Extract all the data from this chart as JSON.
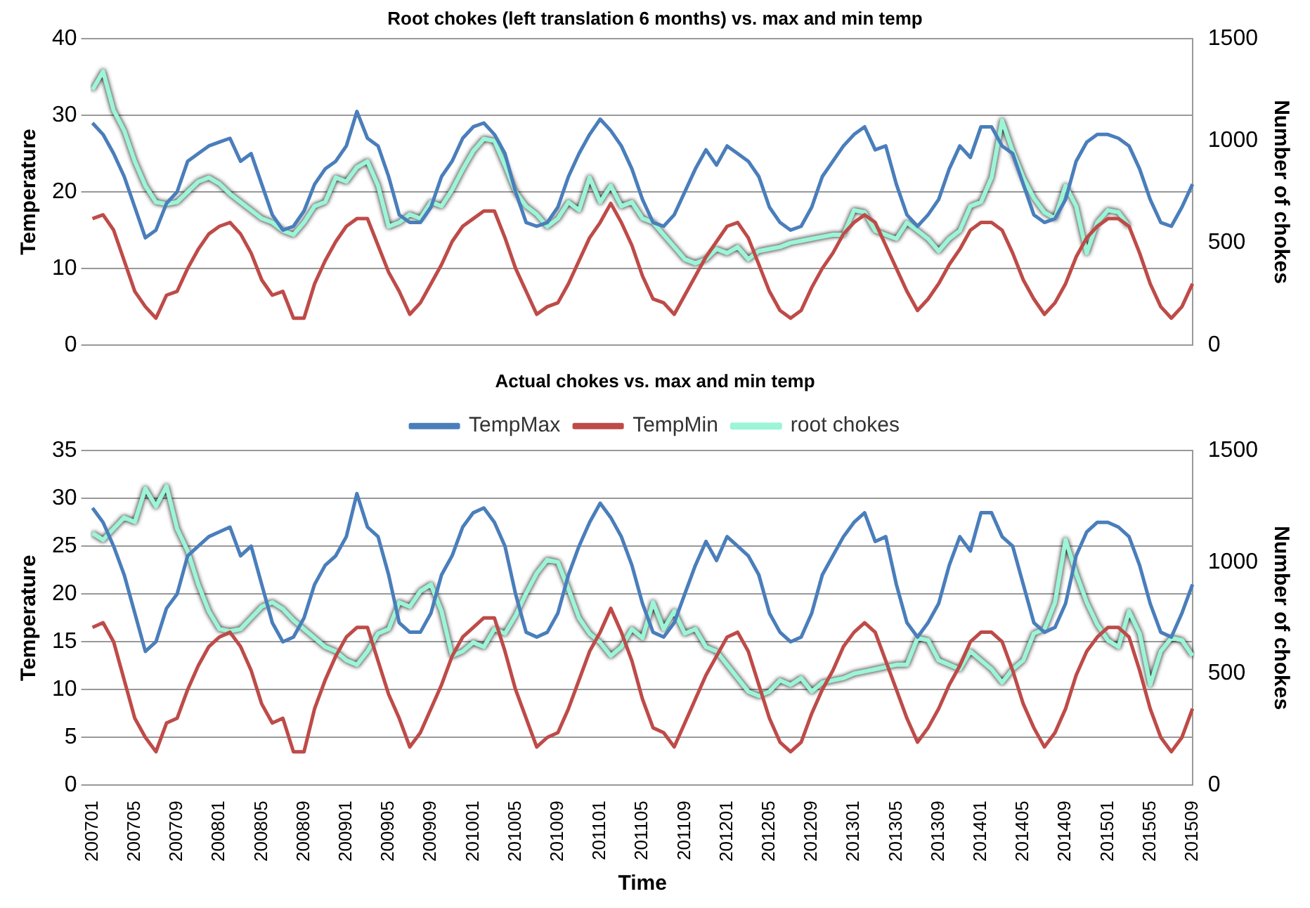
{
  "chart_data": [
    {
      "type": "line",
      "title": "Root chokes (left translation 6 months) vs. max and min temp",
      "ylabel": "Temperature",
      "y2label": "Number of chokes",
      "categories": [
        "200701",
        null,
        null,
        null,
        "200705",
        null,
        null,
        null,
        "200709",
        null,
        null,
        null,
        "200801",
        null,
        null,
        null,
        "200805",
        null,
        null,
        null,
        "200809",
        null,
        null,
        null,
        "200901",
        null,
        null,
        null,
        "200905",
        null,
        null,
        null,
        "200909",
        null,
        null,
        null,
        "201001",
        null,
        null,
        null,
        "201005",
        null,
        null,
        null,
        "201009",
        null,
        null,
        null,
        "201101",
        null,
        null,
        null,
        "201105",
        null,
        null,
        null,
        "201109",
        null,
        null,
        null,
        "201201",
        null,
        null,
        null,
        "201205",
        null,
        null,
        null,
        "201209",
        null,
        null,
        null,
        "201301",
        null,
        null,
        null,
        "201305",
        null,
        null,
        null,
        "201309",
        null,
        null,
        null,
        "201401",
        null,
        null,
        null,
        "201405",
        null,
        null,
        null,
        "201409",
        null,
        null,
        null,
        "201501",
        null,
        null,
        null,
        "201505",
        null,
        null,
        null,
        "201509"
      ],
      "tick_labels": "y",
      "grid": "y",
      "legend": false,
      "marker": "none",
      "line_style": "solid",
      "ylim": [
        0,
        40
      ],
      "yticks": [
        0,
        10,
        20,
        30,
        40
      ],
      "y2lim": [
        0,
        1500
      ],
      "y2ticks": [
        0,
        500,
        1000,
        1500
      ],
      "series": [
        {
          "color": "#4a7ebb",
          "values": [
            29,
            27.5,
            25,
            22,
            18,
            14,
            15,
            18.5,
            20,
            24,
            25,
            26,
            26.5,
            27,
            24,
            25,
            21,
            17,
            15,
            15.5,
            17.5,
            21,
            23,
            24,
            26,
            30.5,
            27,
            26,
            22,
            17,
            16,
            16,
            18,
            22,
            24,
            27,
            28.5,
            29,
            27.5,
            25,
            20,
            16,
            15.5,
            16,
            18,
            22,
            25,
            27.5,
            29.5,
            28,
            26,
            23,
            19,
            16,
            15.5,
            17,
            20,
            23,
            25.5,
            23.5,
            26,
            25,
            24,
            22,
            18,
            16,
            15,
            15.5,
            18,
            22,
            24,
            26,
            27.5,
            28.5,
            25.5,
            26,
            21,
            17,
            15.5,
            17,
            19,
            23,
            26,
            24.5,
            28.5,
            28.5,
            26,
            25,
            21,
            17,
            16,
            16.5,
            19,
            24,
            26.5,
            27.5,
            27.5,
            27,
            26,
            23,
            19,
            16,
            15.5,
            18,
            21
          ]
        },
        {
          "color": "#be4b48",
          "values": [
            16.5,
            17,
            15,
            11,
            7,
            5,
            3.5,
            6.5,
            7,
            10,
            12.5,
            14.5,
            15.5,
            16,
            14.5,
            12,
            8.5,
            6.5,
            7,
            3.5,
            3.5,
            8,
            11,
            13.5,
            15.5,
            16.5,
            16.5,
            13,
            9.5,
            7,
            4,
            5.5,
            8,
            10.5,
            13.5,
            15.5,
            16.5,
            17.5,
            17.5,
            14,
            10,
            7,
            4,
            5,
            5.5,
            8,
            11,
            14,
            16,
            18.5,
            16,
            13,
            9,
            6,
            5.5,
            4,
            6.5,
            9,
            11.5,
            13.5,
            15.5,
            16,
            14,
            10.5,
            7,
            4.5,
            3.5,
            4.5,
            7.5,
            10,
            12,
            14.5,
            16,
            17,
            16,
            13,
            10,
            7,
            4.5,
            6,
            8,
            10.5,
            12.5,
            15,
            16,
            16,
            15,
            12,
            8.5,
            6,
            4,
            5.5,
            8,
            11.5,
            14,
            15.5,
            16.5,
            16.5,
            15.5,
            12,
            8,
            5,
            3.5,
            5,
            8
          ]
        },
        {
          "color": "#9cf5d6",
          "axis": "y2",
          "values": [
            1250,
            1340,
            1150,
            1050,
            900,
            780,
            700,
            690,
            700,
            750,
            800,
            820,
            790,
            740,
            700,
            660,
            620,
            600,
            560,
            540,
            600,
            680,
            700,
            820,
            800,
            870,
            900,
            780,
            580,
            600,
            640,
            620,
            700,
            680,
            760,
            860,
            950,
            1010,
            1000,
            880,
            750,
            680,
            640,
            580,
            620,
            700,
            660,
            820,
            700,
            780,
            680,
            700,
            620,
            600,
            540,
            480,
            420,
            400,
            420,
            470,
            450,
            480,
            420,
            460,
            470,
            480,
            500,
            510,
            520,
            530,
            540,
            540,
            660,
            650,
            560,
            540,
            520,
            600,
            560,
            520,
            460,
            520,
            560,
            680,
            700,
            820,
            1100,
            950,
            820,
            720,
            650,
            620,
            780,
            680,
            450,
            600,
            660,
            650,
            580,
            null,
            null,
            null,
            null,
            null,
            null
          ]
        }
      ]
    },
    {
      "type": "line",
      "title": "Actual chokes vs. max and min temp",
      "xlabel": "Time",
      "ylabel": "Temperature",
      "y2label": "Number of chokes",
      "categories": [
        "200701",
        null,
        null,
        null,
        "200705",
        null,
        null,
        null,
        "200709",
        null,
        null,
        null,
        "200801",
        null,
        null,
        null,
        "200805",
        null,
        null,
        null,
        "200809",
        null,
        null,
        null,
        "200901",
        null,
        null,
        null,
        "200905",
        null,
        null,
        null,
        "200909",
        null,
        null,
        null,
        "201001",
        null,
        null,
        null,
        "201005",
        null,
        null,
        null,
        "201009",
        null,
        null,
        null,
        "201101",
        null,
        null,
        null,
        "201105",
        null,
        null,
        null,
        "201109",
        null,
        null,
        null,
        "201201",
        null,
        null,
        null,
        "201205",
        null,
        null,
        null,
        "201209",
        null,
        null,
        null,
        "201301",
        null,
        null,
        null,
        "201305",
        null,
        null,
        null,
        "201309",
        null,
        null,
        null,
        "201401",
        null,
        null,
        null,
        "201405",
        null,
        null,
        null,
        "201409",
        null,
        null,
        null,
        "201501",
        null,
        null,
        null,
        "201505",
        null,
        null,
        null,
        "201509"
      ],
      "grid": "y",
      "legend": "top",
      "marker": "none",
      "line_style": "solid",
      "ylim": [
        0,
        35
      ],
      "yticks": [
        0,
        5,
        10,
        15,
        20,
        25,
        30,
        35
      ],
      "y2lim": [
        0,
        1500
      ],
      "y2ticks": [
        0,
        500,
        1000,
        1500
      ],
      "series": [
        {
          "name": "TempMax",
          "color": "#4a7ebb",
          "values": [
            29,
            27.5,
            25,
            22,
            18,
            14,
            15,
            18.5,
            20,
            24,
            25,
            26,
            26.5,
            27,
            24,
            25,
            21,
            17,
            15,
            15.5,
            17.5,
            21,
            23,
            24,
            26,
            30.5,
            27,
            26,
            22,
            17,
            16,
            16,
            18,
            22,
            24,
            27,
            28.5,
            29,
            27.5,
            25,
            20,
            16,
            15.5,
            16,
            18,
            22,
            25,
            27.5,
            29.5,
            28,
            26,
            23,
            19,
            16,
            15.5,
            17,
            20,
            23,
            25.5,
            23.5,
            26,
            25,
            24,
            22,
            18,
            16,
            15,
            15.5,
            18,
            22,
            24,
            26,
            27.5,
            28.5,
            25.5,
            26,
            21,
            17,
            15.5,
            17,
            19,
            23,
            26,
            24.5,
            28.5,
            28.5,
            26,
            25,
            21,
            17,
            16,
            16.5,
            19,
            24,
            26.5,
            27.5,
            27.5,
            27,
            26,
            23,
            19,
            16,
            15.5,
            18,
            21
          ]
        },
        {
          "name": "TempMin",
          "color": "#be4b48",
          "values": [
            16.5,
            17,
            15,
            11,
            7,
            5,
            3.5,
            6.5,
            7,
            10,
            12.5,
            14.5,
            15.5,
            16,
            14.5,
            12,
            8.5,
            6.5,
            7,
            3.5,
            3.5,
            8,
            11,
            13.5,
            15.5,
            16.5,
            16.5,
            13,
            9.5,
            7,
            4,
            5.5,
            8,
            10.5,
            13.5,
            15.5,
            16.5,
            17.5,
            17.5,
            14,
            10,
            7,
            4,
            5,
            5.5,
            8,
            11,
            14,
            16,
            18.5,
            16,
            13,
            9,
            6,
            5.5,
            4,
            6.5,
            9,
            11.5,
            13.5,
            15.5,
            16,
            14,
            10.5,
            7,
            4.5,
            3.5,
            4.5,
            7.5,
            10,
            12,
            14.5,
            16,
            17,
            16,
            13,
            10,
            7,
            4.5,
            6,
            8,
            10.5,
            12.5,
            15,
            16,
            16,
            15,
            12,
            8.5,
            6,
            4,
            5.5,
            8,
            11.5,
            14,
            15.5,
            16.5,
            16.5,
            15.5,
            12,
            8,
            5,
            3.5,
            5,
            8
          ]
        },
        {
          "name": "root chokes",
          "color": "#9cf5d6",
          "axis": "y2",
          "values": [
            1130,
            1100,
            1150,
            1200,
            1180,
            1330,
            1250,
            1340,
            1150,
            1050,
            900,
            780,
            700,
            690,
            700,
            750,
            800,
            820,
            790,
            740,
            700,
            660,
            620,
            600,
            560,
            540,
            600,
            680,
            700,
            820,
            800,
            870,
            900,
            780,
            580,
            600,
            640,
            620,
            700,
            680,
            760,
            860,
            950,
            1010,
            1000,
            880,
            750,
            680,
            640,
            580,
            620,
            700,
            660,
            820,
            700,
            780,
            680,
            700,
            620,
            600,
            540,
            480,
            420,
            400,
            420,
            470,
            450,
            480,
            420,
            460,
            470,
            480,
            500,
            510,
            520,
            530,
            540,
            540,
            660,
            650,
            560,
            540,
            520,
            600,
            560,
            520,
            460,
            520,
            560,
            680,
            700,
            820,
            1100,
            950,
            820,
            720,
            650,
            620,
            780,
            680,
            450,
            600,
            660,
            650,
            580
          ]
        }
      ]
    }
  ]
}
